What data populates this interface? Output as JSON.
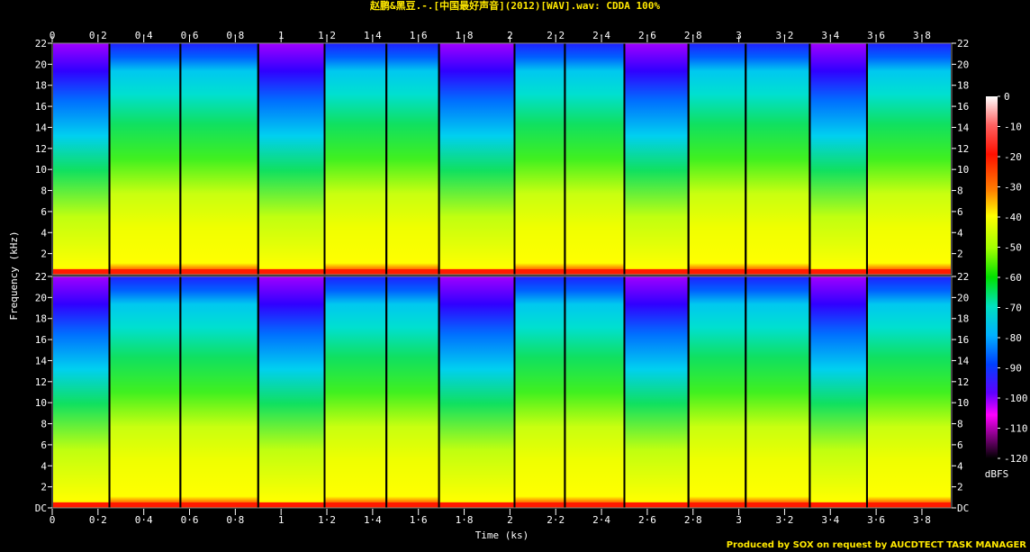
{
  "title": "赵鹏&黑豆.-.[中国最好声音](2012)[WAV].wav: CDDA 100%",
  "credit": "Produced by SOX on request by AUCDTECT TASK MANAGER",
  "chart_data": {
    "type": "heatmap",
    "xlabel": "Time (ks)",
    "ylabel": "Frequency (kHz)",
    "colorbar_label": "dBFS",
    "x_ticks": [
      "0",
      "0·2",
      "0·4",
      "0·6",
      "0·8",
      "1",
      "1·2",
      "1·4",
      "1·6",
      "1·8",
      "2",
      "2·2",
      "2·4",
      "2·6",
      "2·8",
      "3",
      "3·2",
      "3·4",
      "3·6",
      "3·8"
    ],
    "y_ticks": [
      "DC",
      "2",
      "4",
      "6",
      "8",
      "10",
      "12",
      "14",
      "16",
      "18",
      "20",
      "22"
    ],
    "colorbar_ticks": [
      "0",
      "-10",
      "-20",
      "-30",
      "-40",
      "-50",
      "-60",
      "-70",
      "-80",
      "-90",
      "-100",
      "-110",
      "-120"
    ],
    "xlim": [
      0,
      3.93
    ],
    "ylim_khz": [
      0,
      22
    ],
    "channels": 2,
    "track_boundaries_ks": [
      0,
      0.25,
      0.56,
      0.9,
      1.19,
      1.46,
      1.69,
      2.02,
      2.24,
      2.5,
      2.78,
      3.03,
      3.31,
      3.56,
      3.93
    ]
  }
}
